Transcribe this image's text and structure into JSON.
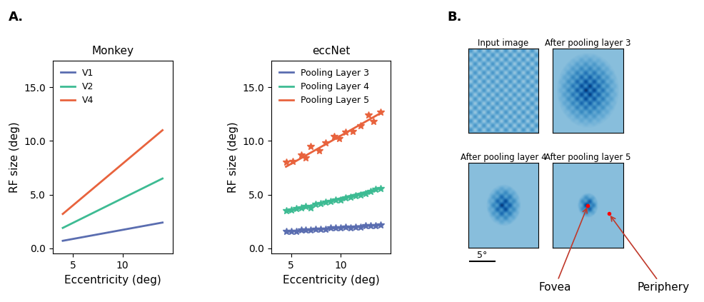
{
  "panel_labels": [
    "A.",
    "B."
  ],
  "chart_data": [
    {
      "type": "line",
      "title": "Monkey",
      "x_label": "Eccentricity (deg)",
      "y_label": "RF size (deg)",
      "xlim": [
        3,
        15
      ],
      "ylim": [
        -0.5,
        17.5
      ],
      "xticks": [
        5,
        10
      ],
      "yticks": [
        {
          "value": 0,
          "label": "0.0"
        },
        {
          "value": 5,
          "label": "5.0"
        },
        {
          "value": 10,
          "label": "10.0"
        },
        {
          "value": 15,
          "label": "15.0"
        }
      ],
      "legend": "upper left",
      "series": [
        {
          "name": "V1",
          "color": "#5a6db0",
          "x": [
            4,
            14
          ],
          "values": [
            0.7,
            2.4
          ]
        },
        {
          "name": "V2",
          "color": "#3dbb93",
          "x": [
            4,
            14
          ],
          "values": [
            1.9,
            6.5
          ]
        },
        {
          "name": "V4",
          "color": "#e8633d",
          "x": [
            4,
            14
          ],
          "values": [
            3.2,
            11.0
          ]
        }
      ]
    },
    {
      "type": "scatter",
      "title": "eccNet",
      "x_label": "Eccentricity (deg)",
      "y_label": "RF size (deg)",
      "xlim": [
        3,
        15
      ],
      "ylim": [
        -0.5,
        17.5
      ],
      "xticks": [
        5,
        10
      ],
      "yticks": [
        {
          "value": 0,
          "label": "0.0"
        },
        {
          "value": 5,
          "label": "5.0"
        },
        {
          "value": 10,
          "label": "10.0"
        },
        {
          "value": 15,
          "label": "15.0"
        }
      ],
      "legend": "upper left",
      "marker": "star",
      "series": [
        {
          "name": "Pooling Layer 3",
          "color": "#5a6db0",
          "x": [
            4.5,
            5,
            5.5,
            6,
            6.5,
            7,
            7.5,
            8,
            8.5,
            9,
            9.5,
            10,
            10.5,
            11,
            11.5,
            12,
            12.5,
            13,
            13.5,
            14
          ],
          "values": [
            1.6,
            1.6,
            1.6,
            1.7,
            1.7,
            1.7,
            1.8,
            1.8,
            1.8,
            1.9,
            1.9,
            1.9,
            2.0,
            1.9,
            2.0,
            2.0,
            2.1,
            2.1,
            2.1,
            2.2
          ],
          "fit_line": {
            "x": [
              4.5,
              14
            ],
            "values": [
              1.55,
              2.2
            ]
          }
        },
        {
          "name": "Pooling Layer 4",
          "color": "#3dbb93",
          "x": [
            4.5,
            5,
            5.5,
            6,
            6.5,
            7,
            7.5,
            8,
            8.5,
            9,
            9.5,
            10,
            10.5,
            11,
            11.5,
            12,
            12.5,
            13,
            13.5,
            14
          ],
          "values": [
            3.5,
            3.6,
            3.7,
            3.8,
            3.9,
            3.8,
            4.1,
            4.2,
            4.3,
            4.4,
            4.5,
            4.5,
            4.7,
            4.8,
            4.9,
            5.0,
            5.1,
            5.3,
            5.5,
            5.6
          ],
          "fit_line": {
            "x": [
              4.5,
              14
            ],
            "values": [
              3.4,
              5.6
            ]
          }
        },
        {
          "name": "Pooling Layer 5",
          "color": "#e8633d",
          "x": [
            4.5,
            5.2,
            6.0,
            6.5,
            7.0,
            7.8,
            8.5,
            9.3,
            9.8,
            10.5,
            11.2,
            12.0,
            12.8,
            13.3,
            14.0
          ],
          "values": [
            8.0,
            8.1,
            8.7,
            8.4,
            9.5,
            9.1,
            9.8,
            10.4,
            10.2,
            10.8,
            10.9,
            11.4,
            12.4,
            11.8,
            12.7
          ],
          "fit_line": {
            "x": [
              4.5,
              14
            ],
            "values": [
              7.6,
              12.6
            ]
          }
        }
      ]
    }
  ],
  "panel_b": {
    "images": [
      {
        "title": "Input image"
      },
      {
        "title": "After pooling layer 3"
      },
      {
        "title": "After pooling layer 4"
      },
      {
        "title": "After pooling layer 5"
      }
    ],
    "scale_bar": "5°",
    "annotations": {
      "fovea": "Fovea",
      "periphery": "Periphery"
    }
  }
}
